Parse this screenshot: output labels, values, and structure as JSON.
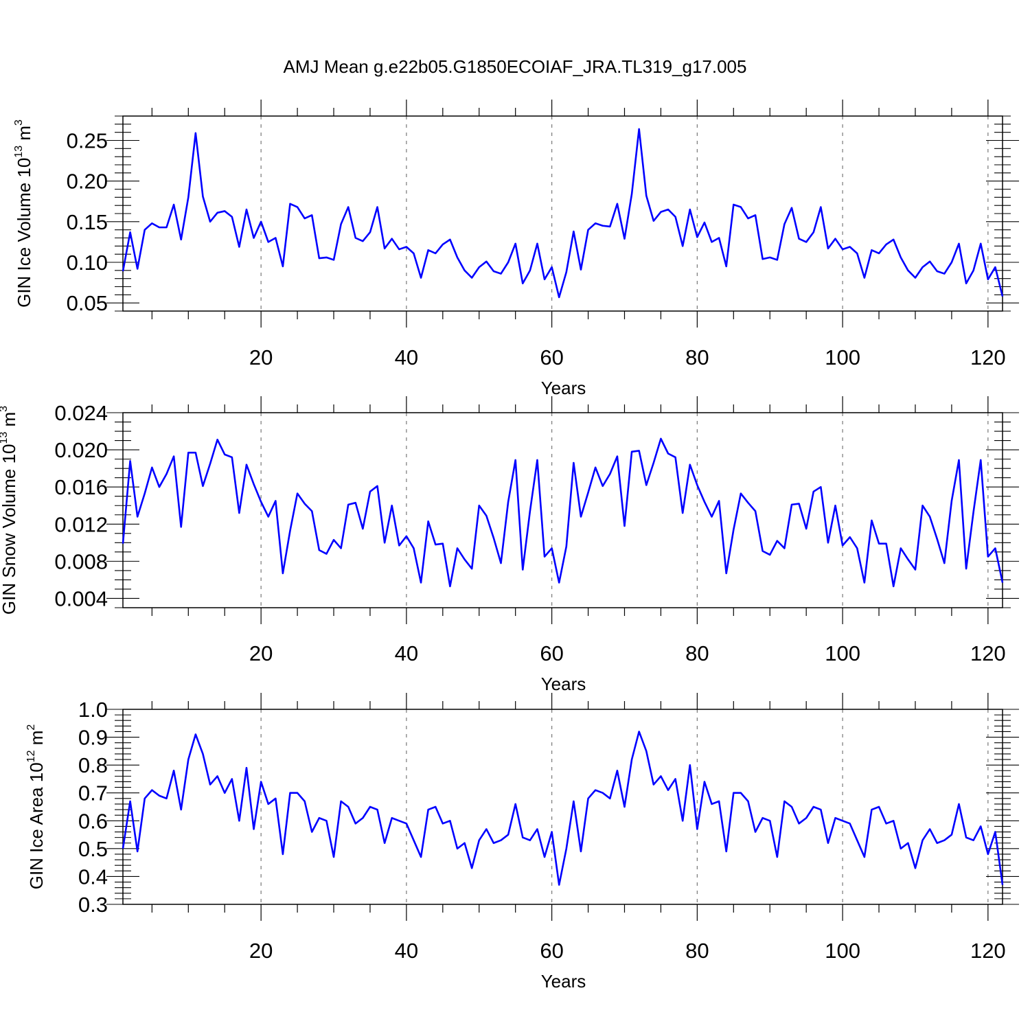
{
  "title": "AMJ Mean g.e22b05.G1850ECOIAF_JRA.TL319_g17.005",
  "colors": {
    "line": "#0000ff",
    "axis": "#000000",
    "grid": "#777777",
    "background": "#ffffff"
  },
  "chart_data": [
    {
      "type": "line",
      "xlabel": "Years",
      "ylabel": {
        "text": "GIN Ice Volume 10",
        "exponent": "13",
        "unit": " m",
        "unit_exponent": "3"
      },
      "xlim": [
        1,
        122
      ],
      "ylim": [
        0.04,
        0.28
      ],
      "x_ticks": [
        20,
        40,
        60,
        80,
        100,
        120
      ],
      "x_tick_labels": [
        "20",
        "40",
        "60",
        "80",
        "100",
        "120"
      ],
      "y_ticks": [
        0.05,
        0.1,
        0.15,
        0.2,
        0.25
      ],
      "y_tick_labels": [
        "0.05",
        "0.10",
        "0.15",
        "0.20",
        "0.25"
      ],
      "y_minor_step": 0.01,
      "grid": "vertical dashed at major x ticks",
      "x": [
        1,
        2,
        3,
        4,
        5,
        6,
        7,
        8,
        9,
        10,
        11,
        12,
        13,
        14,
        15,
        16,
        17,
        18,
        19,
        20,
        21,
        22,
        23,
        24,
        25,
        26,
        27,
        28,
        29,
        30,
        31,
        32,
        33,
        34,
        35,
        36,
        37,
        38,
        39,
        40,
        41,
        42,
        43,
        44,
        45,
        46,
        47,
        48,
        49,
        50,
        51,
        52,
        53,
        54,
        55,
        56,
        57,
        58,
        59,
        60,
        61,
        62,
        63,
        64,
        65,
        66,
        67,
        68,
        69,
        70,
        71,
        72,
        73,
        74,
        75,
        76,
        77,
        78,
        79,
        80,
        81,
        82,
        83,
        84,
        85,
        86,
        87,
        88,
        89,
        90,
        91,
        92,
        93,
        94,
        95,
        96,
        97,
        98,
        99,
        100,
        101,
        102,
        103,
        104,
        105,
        106,
        107,
        108,
        109,
        110,
        111,
        112,
        113,
        114,
        115,
        116,
        117,
        118,
        119,
        120,
        121,
        122
      ],
      "series": [
        {
          "values": [
            0.089,
            0.137,
            0.092,
            0.14,
            0.148,
            0.143,
            0.143,
            0.171,
            0.128,
            0.18,
            0.259,
            0.181,
            0.15,
            0.161,
            0.163,
            0.156,
            0.119,
            0.165,
            0.13,
            0.15,
            0.125,
            0.13,
            0.095,
            0.172,
            0.168,
            0.154,
            0.158,
            0.105,
            0.106,
            0.103,
            0.147,
            0.168,
            0.13,
            0.126,
            0.137,
            0.168,
            0.117,
            0.129,
            0.116,
            0.119,
            0.111,
            0.081,
            0.115,
            0.111,
            0.122,
            0.128,
            0.106,
            0.09,
            0.081,
            0.094,
            0.101,
            0.089,
            0.086,
            0.1,
            0.123,
            0.074,
            0.09,
            0.123,
            0.079,
            0.094,
            0.057,
            0.088,
            0.138,
            0.091,
            0.14,
            0.148,
            0.145,
            0.144,
            0.172,
            0.129,
            0.184,
            0.264,
            0.182,
            0.151,
            0.162,
            0.165,
            0.156,
            0.12,
            0.165,
            0.131,
            0.149,
            0.125,
            0.13,
            0.095,
            0.171,
            0.168,
            0.154,
            0.158,
            0.104,
            0.106,
            0.103,
            0.147,
            0.167,
            0.129,
            0.125,
            0.137,
            0.168,
            0.117,
            0.129,
            0.116,
            0.119,
            0.111,
            0.081,
            0.115,
            0.111,
            0.122,
            0.128,
            0.106,
            0.09,
            0.081,
            0.094,
            0.101,
            0.089,
            0.086,
            0.1,
            0.123,
            0.074,
            0.09,
            0.123,
            0.079,
            0.094,
            0.058
          ]
        }
      ]
    },
    {
      "type": "line",
      "xlabel": "Years",
      "ylabel": {
        "text": "GIN Snow Volume 10",
        "exponent": "13",
        "unit": " m",
        "unit_exponent": "3"
      },
      "xlim": [
        1,
        122
      ],
      "ylim": [
        0.003,
        0.024
      ],
      "x_ticks": [
        20,
        40,
        60,
        80,
        100,
        120
      ],
      "x_tick_labels": [
        "20",
        "40",
        "60",
        "80",
        "100",
        "120"
      ],
      "y_ticks": [
        0.004,
        0.008,
        0.012,
        0.016,
        0.02,
        0.024
      ],
      "y_tick_labels": [
        "0.004",
        "0.008",
        "0.012",
        "0.016",
        "0.020",
        "0.024"
      ],
      "y_minor_step": 0.001,
      "grid": "vertical dashed at major x ticks",
      "x": [
        1,
        2,
        3,
        4,
        5,
        6,
        7,
        8,
        9,
        10,
        11,
        12,
        13,
        14,
        15,
        16,
        17,
        18,
        19,
        20,
        21,
        22,
        23,
        24,
        25,
        26,
        27,
        28,
        29,
        30,
        31,
        32,
        33,
        34,
        35,
        36,
        37,
        38,
        39,
        40,
        41,
        42,
        43,
        44,
        45,
        46,
        47,
        48,
        49,
        50,
        51,
        52,
        53,
        54,
        55,
        56,
        57,
        58,
        59,
        60,
        61,
        62,
        63,
        64,
        65,
        66,
        67,
        68,
        69,
        70,
        71,
        72,
        73,
        74,
        75,
        76,
        77,
        78,
        79,
        80,
        81,
        82,
        83,
        84,
        85,
        86,
        87,
        88,
        89,
        90,
        91,
        92,
        93,
        94,
        95,
        96,
        97,
        98,
        99,
        100,
        101,
        102,
        103,
        104,
        105,
        106,
        107,
        108,
        109,
        110,
        111,
        112,
        113,
        114,
        115,
        116,
        117,
        118,
        119,
        120,
        121,
        122
      ],
      "series": [
        {
          "values": [
            0.0099,
            0.0188,
            0.0128,
            0.0153,
            0.0181,
            0.016,
            0.0174,
            0.0193,
            0.0117,
            0.0197,
            0.0197,
            0.0161,
            0.0185,
            0.0211,
            0.0195,
            0.0192,
            0.0132,
            0.0184,
            0.0163,
            0.0144,
            0.0128,
            0.0145,
            0.0067,
            0.0113,
            0.0153,
            0.0142,
            0.0134,
            0.0092,
            0.0088,
            0.0103,
            0.0094,
            0.0141,
            0.0143,
            0.0115,
            0.0155,
            0.0161,
            0.01,
            0.014,
            0.0097,
            0.0107,
            0.0094,
            0.0057,
            0.0123,
            0.0098,
            0.0099,
            0.0053,
            0.0094,
            0.0082,
            0.0072,
            0.014,
            0.0129,
            0.0105,
            0.0078,
            0.0144,
            0.0189,
            0.0071,
            0.0134,
            0.0189,
            0.0085,
            0.0094,
            0.0057,
            0.0096,
            0.0186,
            0.0128,
            0.0154,
            0.0181,
            0.0161,
            0.0174,
            0.0193,
            0.0118,
            0.0198,
            0.0199,
            0.0162,
            0.0186,
            0.0212,
            0.0196,
            0.0192,
            0.0132,
            0.0184,
            0.0162,
            0.0144,
            0.0128,
            0.0145,
            0.0067,
            0.0114,
            0.0153,
            0.0143,
            0.0134,
            0.0091,
            0.0087,
            0.0102,
            0.0094,
            0.0141,
            0.0142,
            0.0115,
            0.0155,
            0.016,
            0.01,
            0.014,
            0.0097,
            0.0106,
            0.0094,
            0.0057,
            0.0124,
            0.0099,
            0.0099,
            0.0053,
            0.0094,
            0.0082,
            0.0071,
            0.014,
            0.0128,
            0.0104,
            0.0078,
            0.0145,
            0.0189,
            0.0072,
            0.0133,
            0.0189,
            0.0085,
            0.0094,
            0.0057
          ]
        }
      ]
    },
    {
      "type": "line",
      "xlabel": "Years",
      "ylabel": {
        "text": "GIN Ice Area 10",
        "exponent": "12",
        "unit": " m",
        "unit_exponent": "2"
      },
      "xlim": [
        1,
        122
      ],
      "ylim": [
        0.3,
        1.0
      ],
      "x_ticks": [
        20,
        40,
        60,
        80,
        100,
        120
      ],
      "x_tick_labels": [
        "20",
        "40",
        "60",
        "80",
        "100",
        "120"
      ],
      "y_ticks": [
        0.3,
        0.4,
        0.5,
        0.6,
        0.7,
        0.8,
        0.9,
        1.0
      ],
      "y_tick_labels": [
        "0.3",
        "0.4",
        "0.5",
        "0.6",
        "0.7",
        "0.8",
        "0.9",
        "1.0"
      ],
      "y_minor_step": 0.02,
      "grid": "vertical dashed at major x ticks",
      "x": [
        1,
        2,
        3,
        4,
        5,
        6,
        7,
        8,
        9,
        10,
        11,
        12,
        13,
        14,
        15,
        16,
        17,
        18,
        19,
        20,
        21,
        22,
        23,
        24,
        25,
        26,
        27,
        28,
        29,
        30,
        31,
        32,
        33,
        34,
        35,
        36,
        37,
        38,
        39,
        40,
        41,
        42,
        43,
        44,
        45,
        46,
        47,
        48,
        49,
        50,
        51,
        52,
        53,
        54,
        55,
        56,
        57,
        58,
        59,
        60,
        61,
        62,
        63,
        64,
        65,
        66,
        67,
        68,
        69,
        70,
        71,
        72,
        73,
        74,
        75,
        76,
        77,
        78,
        79,
        80,
        81,
        82,
        83,
        84,
        85,
        86,
        87,
        88,
        89,
        90,
        91,
        92,
        93,
        94,
        95,
        96,
        97,
        98,
        99,
        100,
        101,
        102,
        103,
        104,
        105,
        106,
        107,
        108,
        109,
        110,
        111,
        112,
        113,
        114,
        115,
        116,
        117,
        118,
        119,
        120,
        121,
        122
      ],
      "series": [
        {
          "values": [
            0.5,
            0.67,
            0.49,
            0.68,
            0.71,
            0.69,
            0.68,
            0.78,
            0.64,
            0.82,
            0.91,
            0.84,
            0.73,
            0.76,
            0.7,
            0.75,
            0.6,
            0.79,
            0.57,
            0.74,
            0.66,
            0.68,
            0.48,
            0.7,
            0.7,
            0.67,
            0.56,
            0.61,
            0.6,
            0.47,
            0.67,
            0.65,
            0.59,
            0.61,
            0.65,
            0.64,
            0.52,
            0.61,
            0.6,
            0.59,
            0.53,
            0.47,
            0.64,
            0.65,
            0.59,
            0.6,
            0.5,
            0.52,
            0.43,
            0.53,
            0.57,
            0.52,
            0.53,
            0.55,
            0.66,
            0.54,
            0.53,
            0.57,
            0.47,
            0.56,
            0.37,
            0.5,
            0.67,
            0.49,
            0.68,
            0.71,
            0.7,
            0.68,
            0.78,
            0.65,
            0.82,
            0.92,
            0.85,
            0.73,
            0.76,
            0.71,
            0.75,
            0.6,
            0.8,
            0.57,
            0.74,
            0.66,
            0.67,
            0.49,
            0.7,
            0.7,
            0.67,
            0.56,
            0.61,
            0.6,
            0.47,
            0.67,
            0.65,
            0.59,
            0.61,
            0.65,
            0.64,
            0.52,
            0.61,
            0.6,
            0.59,
            0.53,
            0.47,
            0.64,
            0.65,
            0.59,
            0.6,
            0.5,
            0.52,
            0.43,
            0.53,
            0.57,
            0.52,
            0.53,
            0.55,
            0.66,
            0.54,
            0.53,
            0.58,
            0.48,
            0.56,
            0.37
          ]
        }
      ]
    }
  ]
}
